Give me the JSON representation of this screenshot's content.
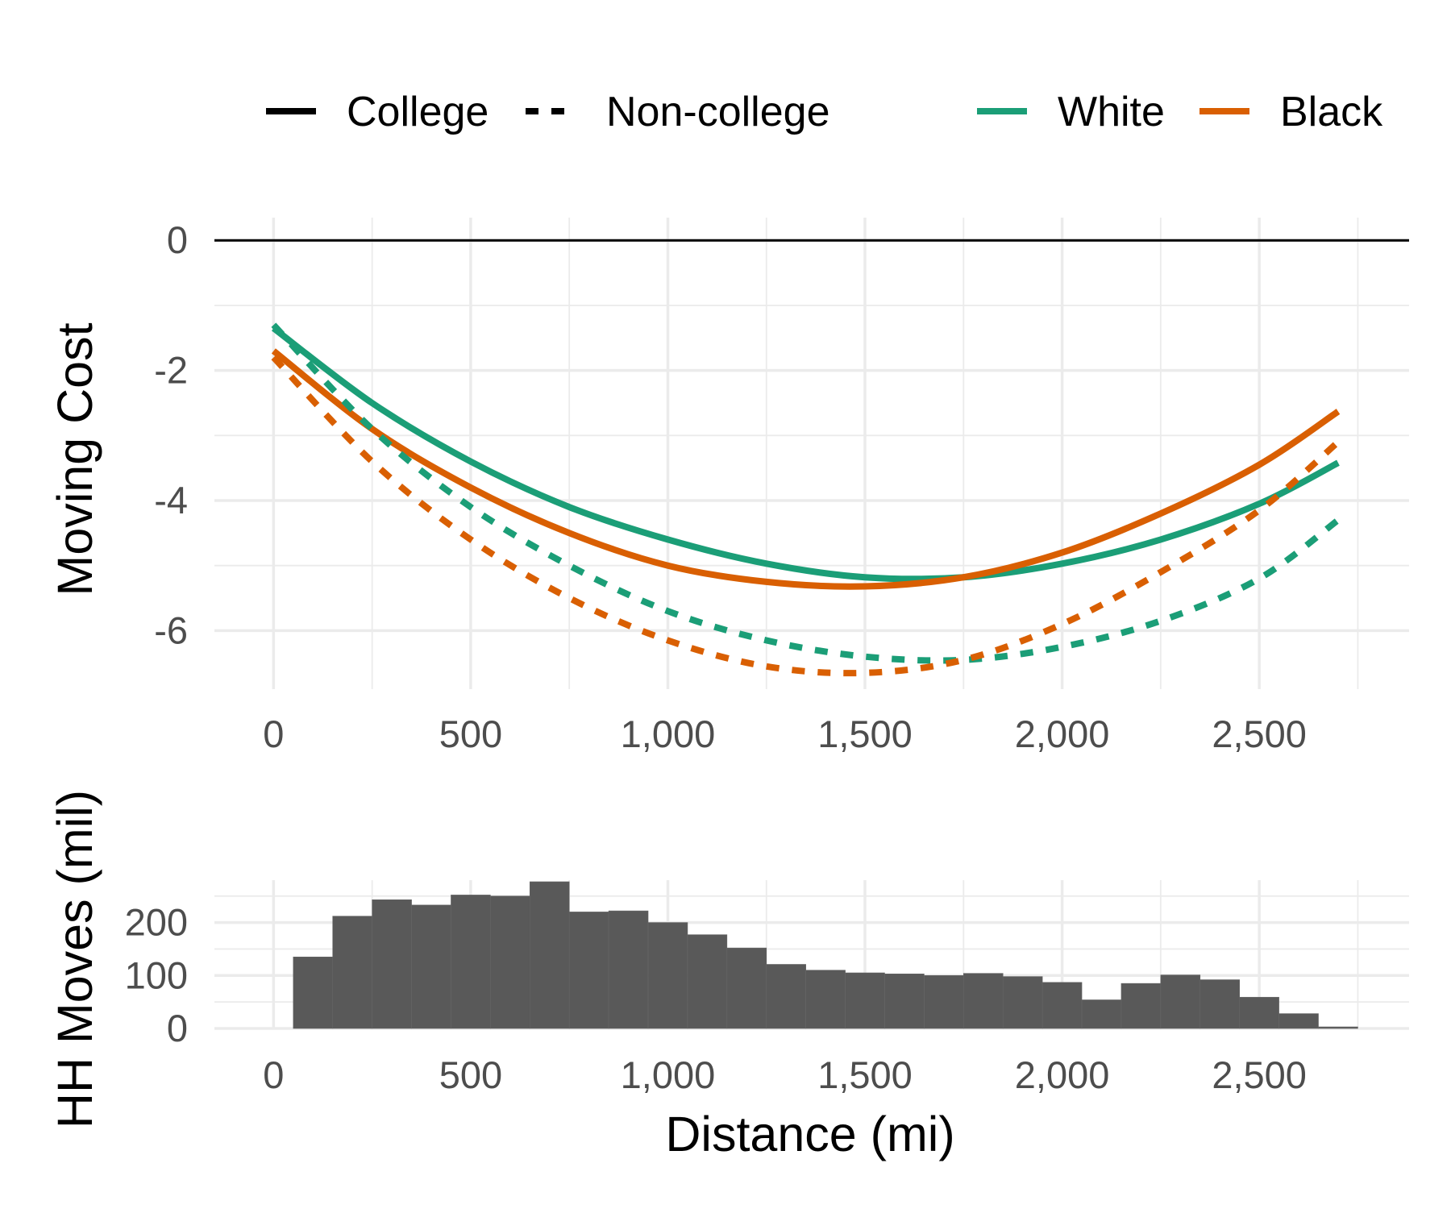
{
  "legend": {
    "linetype": [
      {
        "label": "College",
        "dash": "solid"
      },
      {
        "label": "Non-college",
        "dash": "dashed"
      }
    ],
    "color": [
      {
        "label": "White",
        "color": "#1b9e77"
      },
      {
        "label": "Black",
        "color": "#d95f02"
      }
    ]
  },
  "chart_data": [
    {
      "type": "line",
      "ylabel": "Moving Cost",
      "xlabel": "",
      "xlim": [
        -150,
        2880
      ],
      "ylim": [
        -6.9,
        0.35
      ],
      "x_ticks": [
        0,
        500,
        1000,
        1500,
        2000,
        2500
      ],
      "x_tick_labels": [
        "0",
        "500",
        "1,000",
        "1,500",
        "2,000",
        "2,500"
      ],
      "y_ticks": [
        0,
        -2,
        -4,
        -6
      ],
      "y_tick_labels": [
        "0",
        "-2",
        "-4",
        "-6"
      ],
      "reference_line": 0,
      "grid": true,
      "series": [
        {
          "name": "White",
          "education": "College",
          "color": "#1b9e77",
          "dash": "solid",
          "x": [
            0,
            250,
            500,
            750,
            1000,
            1250,
            1500,
            1750,
            2000,
            2250,
            2500,
            2700
          ],
          "y": [
            -1.35,
            -2.5,
            -3.4,
            -4.1,
            -4.6,
            -4.97,
            -5.18,
            -5.18,
            -4.97,
            -4.6,
            -4.05,
            -3.42
          ]
        },
        {
          "name": "Black",
          "education": "College",
          "color": "#d95f02",
          "dash": "solid",
          "x": [
            0,
            250,
            500,
            750,
            1000,
            1250,
            1500,
            1750,
            2000,
            2250,
            2500,
            2700
          ],
          "y": [
            -1.7,
            -2.9,
            -3.8,
            -4.5,
            -5.0,
            -5.25,
            -5.32,
            -5.18,
            -4.8,
            -4.2,
            -3.45,
            -2.63
          ]
        },
        {
          "name": "White",
          "education": "Non-college",
          "color": "#1b9e77",
          "dash": "dashed",
          "x": [
            0,
            250,
            500,
            750,
            1000,
            1250,
            1500,
            1750,
            2000,
            2250,
            2500,
            2700
          ],
          "y": [
            -1.3,
            -2.9,
            -4.1,
            -5.0,
            -5.7,
            -6.15,
            -6.4,
            -6.45,
            -6.25,
            -5.85,
            -5.2,
            -4.3
          ]
        },
        {
          "name": "Black",
          "education": "Non-college",
          "color": "#d95f02",
          "dash": "dashed",
          "x": [
            0,
            250,
            500,
            750,
            1000,
            1250,
            1500,
            1750,
            2000,
            2250,
            2500,
            2700
          ],
          "y": [
            -1.8,
            -3.4,
            -4.6,
            -5.5,
            -6.15,
            -6.55,
            -6.65,
            -6.45,
            -5.9,
            -5.1,
            -4.15,
            -3.1
          ]
        }
      ]
    },
    {
      "type": "bar",
      "xlabel": "Distance (mi)",
      "ylabel": "HH Moves (mil)",
      "xlim": [
        -150,
        2880
      ],
      "ylim": [
        0,
        280
      ],
      "x_ticks": [
        0,
        500,
        1000,
        1500,
        2000,
        2500
      ],
      "x_tick_labels": [
        "0",
        "500",
        "1,000",
        "1,500",
        "2,000",
        "2,500"
      ],
      "y_ticks": [
        0,
        100,
        200
      ],
      "y_tick_labels": [
        "0",
        "100",
        "200"
      ],
      "grid": true,
      "bin_width": 100,
      "bar_color": "#595959",
      "bin_centers": [
        100,
        200,
        300,
        400,
        500,
        600,
        700,
        800,
        900,
        1000,
        1100,
        1200,
        1300,
        1400,
        1500,
        1600,
        1700,
        1800,
        1900,
        2000,
        2100,
        2200,
        2300,
        2400,
        2500,
        2600,
        2700
      ],
      "values": [
        135,
        212,
        243,
        233,
        252,
        250,
        277,
        220,
        222,
        200,
        177,
        152,
        121,
        110,
        105,
        103,
        100,
        104,
        98,
        87,
        54,
        85,
        101,
        92,
        59,
        28,
        3
      ]
    }
  ]
}
